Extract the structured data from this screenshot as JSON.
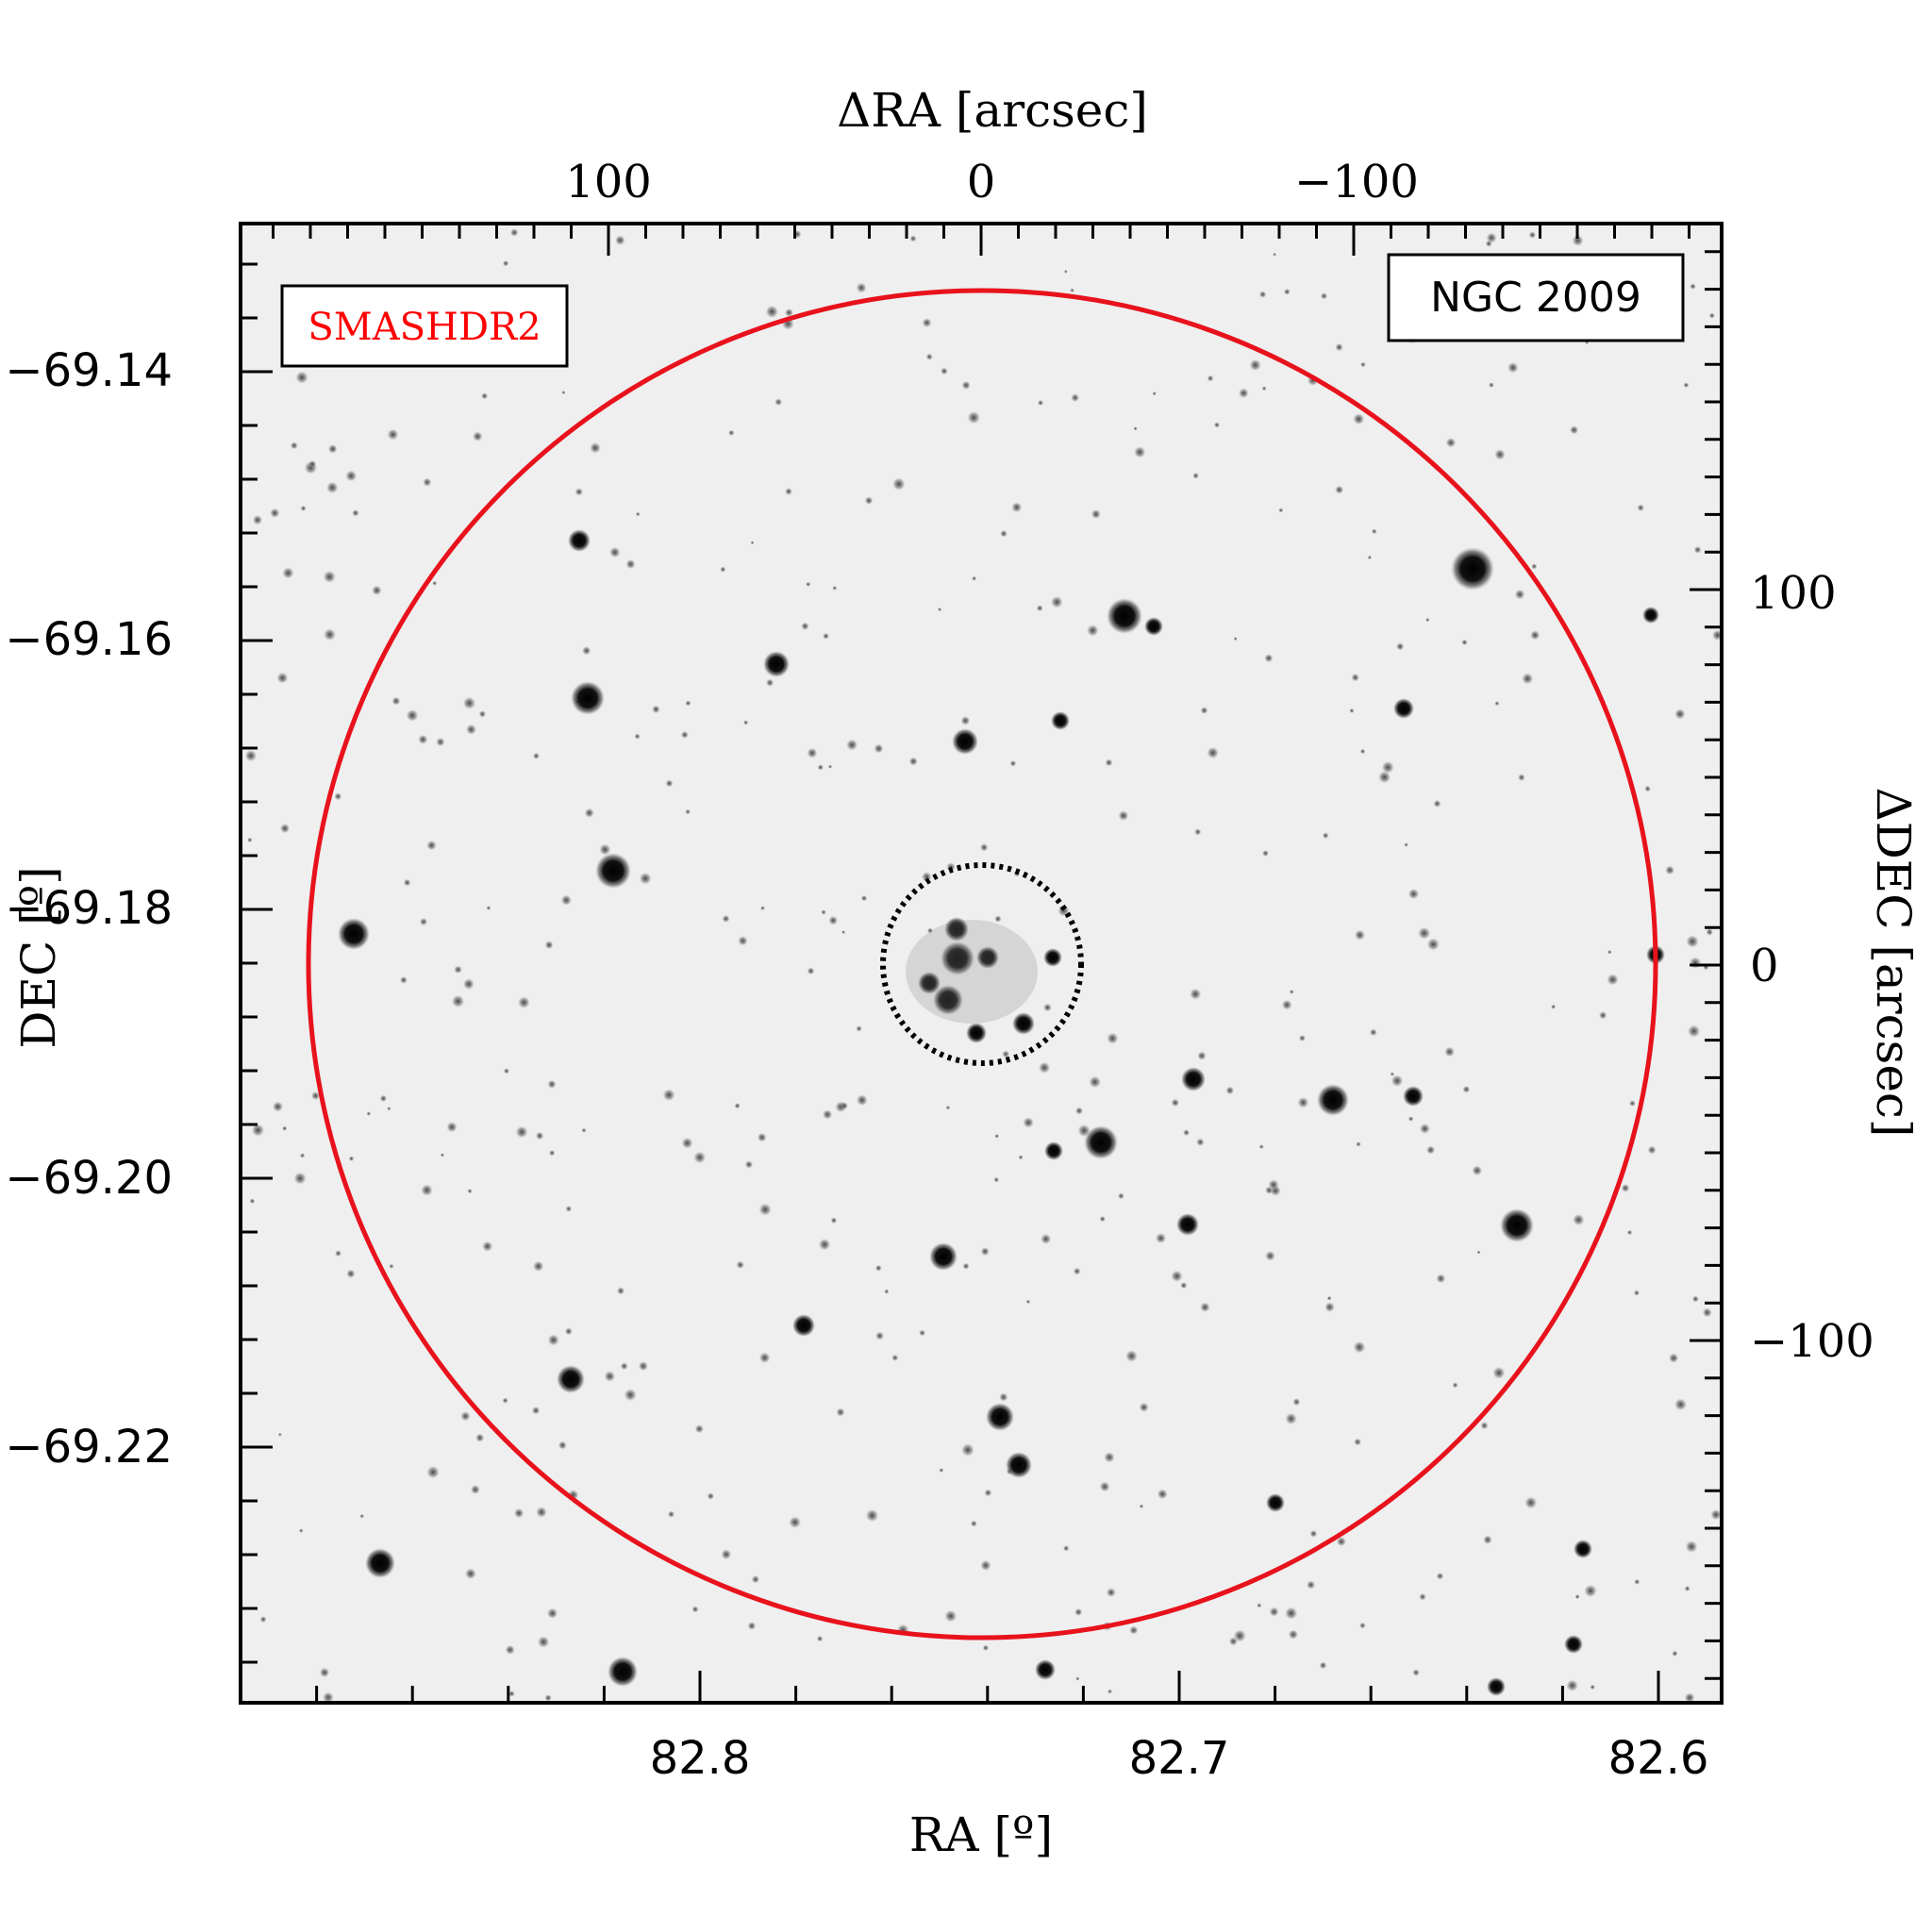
{
  "figure": {
    "survey_label": "SMASHDR2",
    "object_label": "NGC 2009",
    "bottom_axis_label": "RA [º]",
    "left_axis_label": "DEC [º]",
    "top_axis_label": "ΔRA [arcsec]",
    "right_axis_label": "ΔDEC [arcsec]",
    "bottom_ticks": [
      "82.8",
      "82.7",
      "82.6"
    ],
    "left_ticks": [
      "−69.14",
      "−69.16",
      "−69.18",
      "−69.20",
      "−69.22"
    ],
    "top_ticks": [
      "100",
      "0",
      "−100"
    ],
    "right_ticks": [
      "100",
      "0",
      "−100"
    ]
  },
  "colors": {
    "survey_label": "#ff0000",
    "outer_circle": "#e8121c",
    "inner_circle": "#000000",
    "background": "#f2f2f2"
  },
  "apertures": {
    "outer_circle_style": "solid red",
    "inner_circle_style": "dotted black"
  }
}
